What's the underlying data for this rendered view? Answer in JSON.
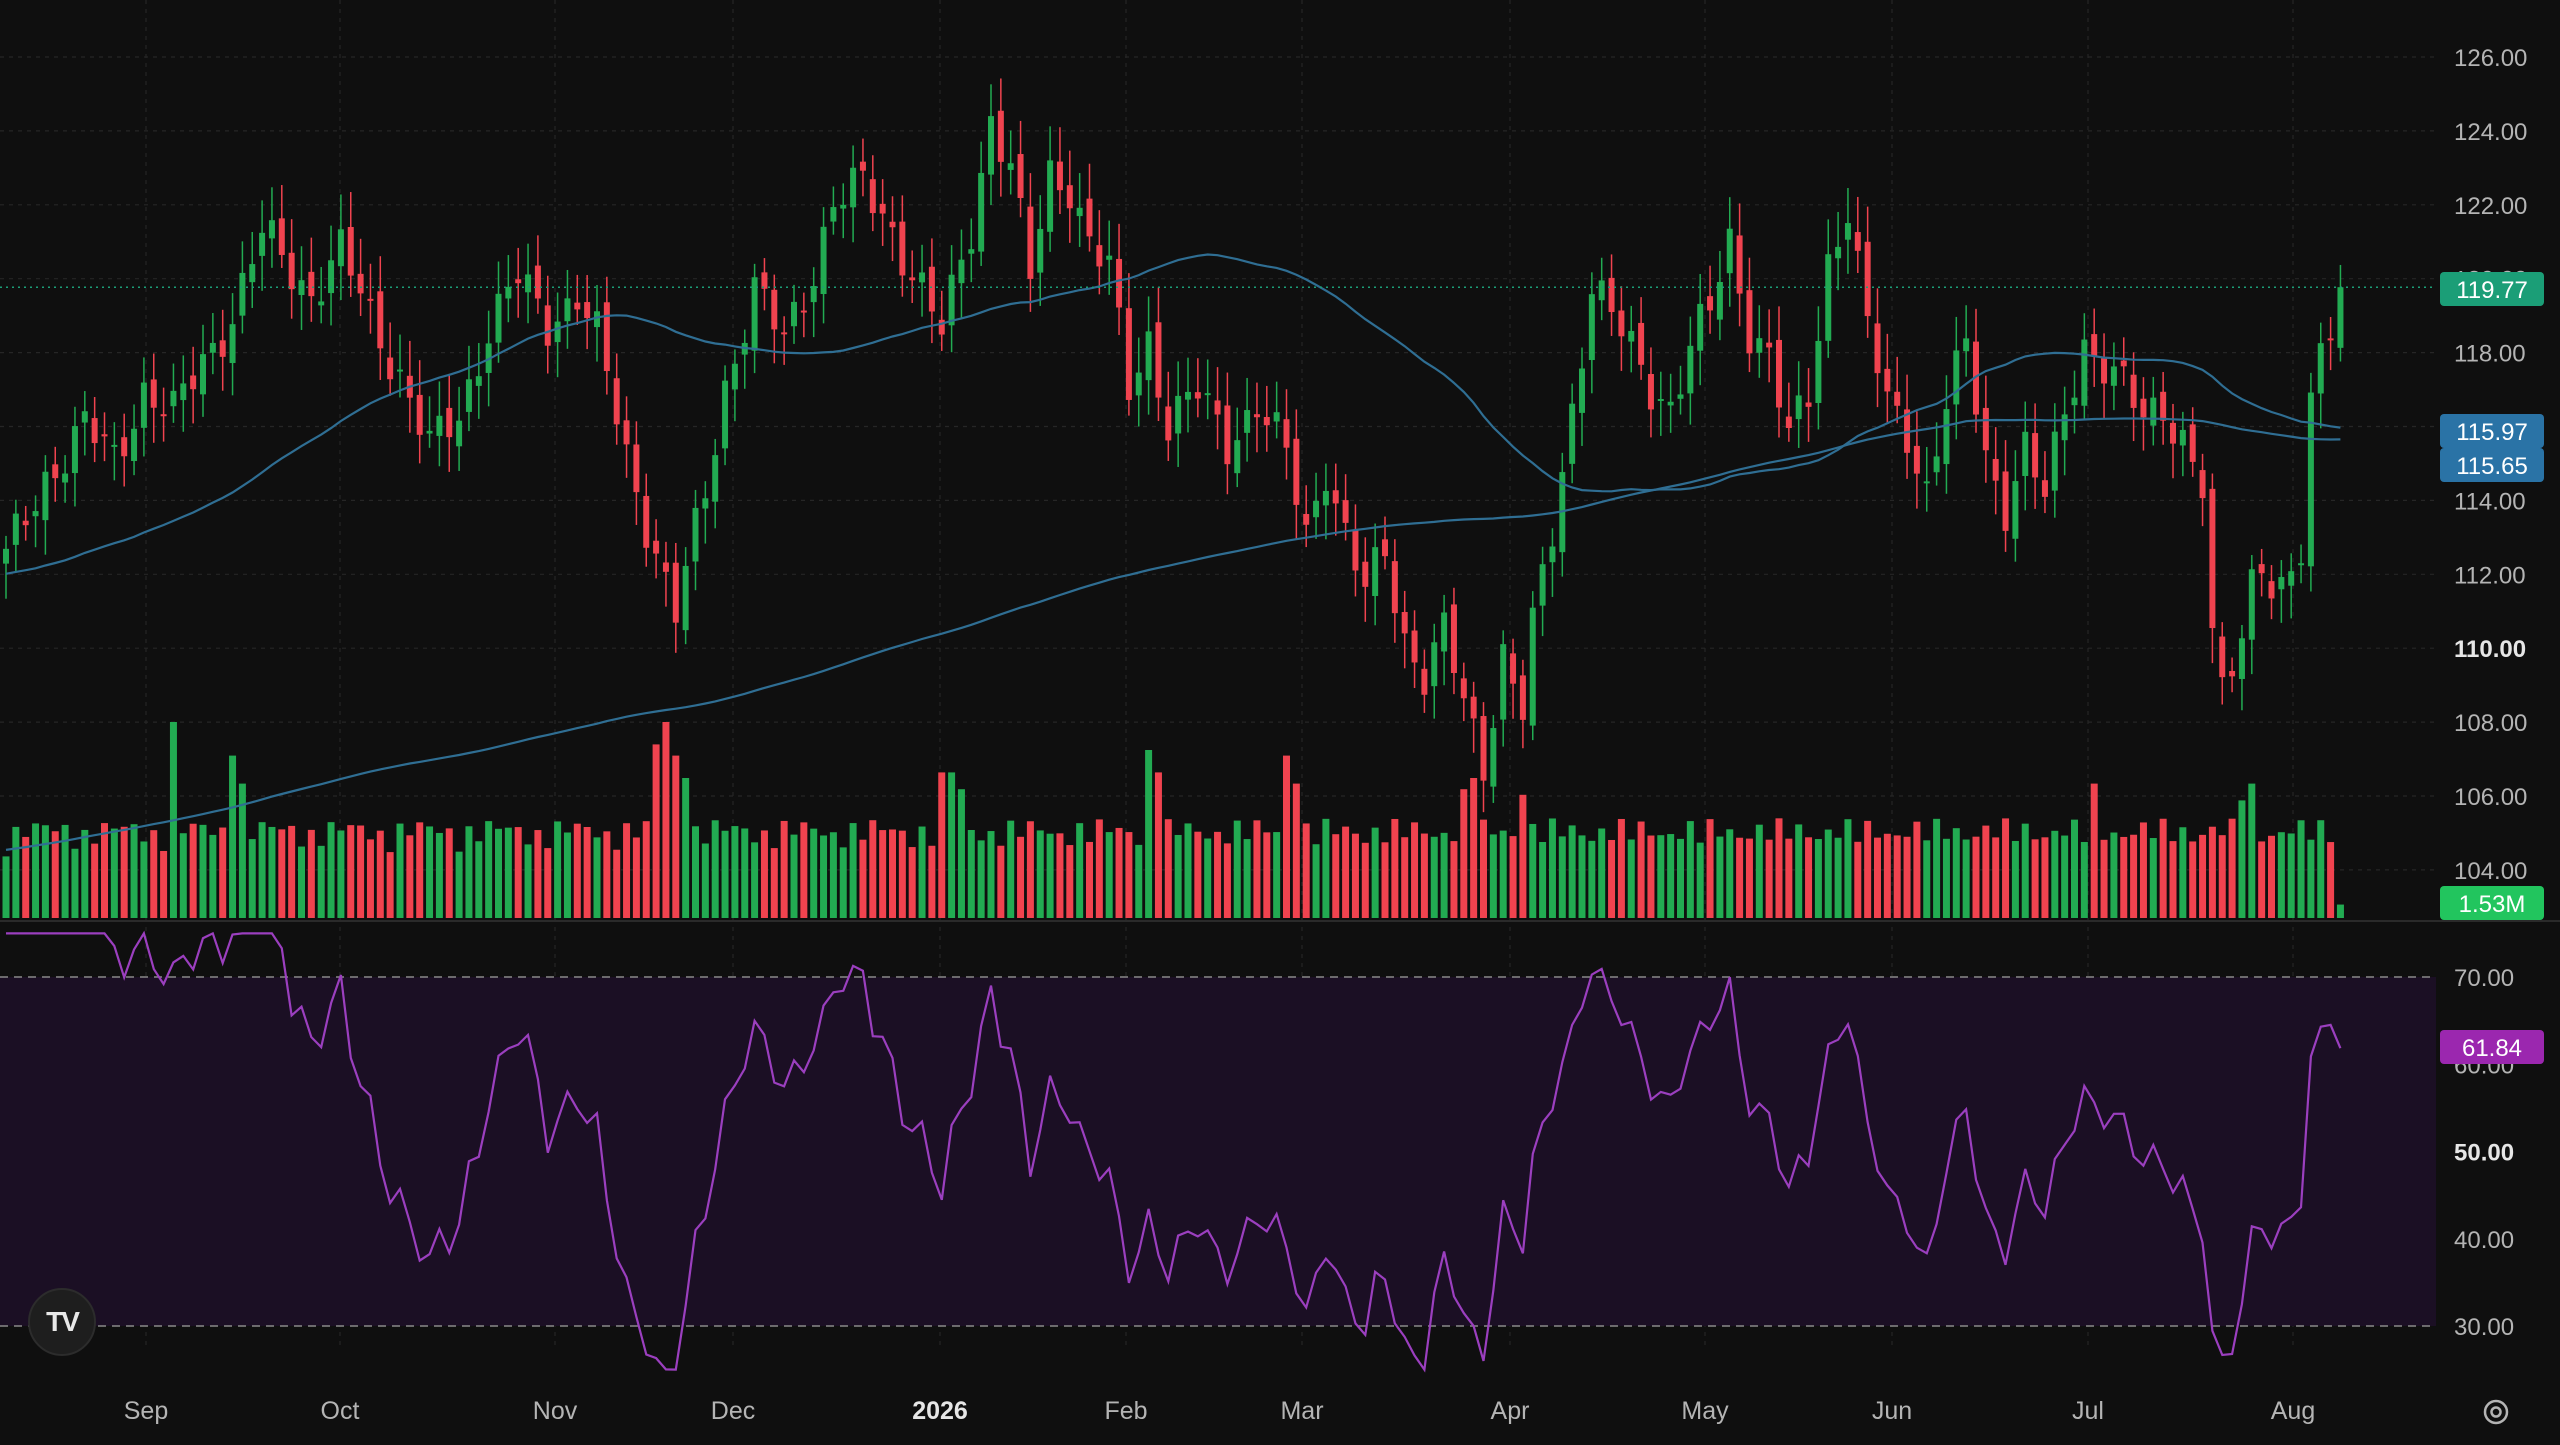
{
  "app": {
    "logo_text": "TV",
    "logo_icon": "tradingview-logo-icon",
    "settings_icon": "gear-icon"
  },
  "colors": {
    "background": "#0f0f0f",
    "grid": "#262626",
    "up": "#22ab52",
    "down": "#f0434f",
    "ma_line": "#2f6e93",
    "last_price_badge": "#1b9e77",
    "ma_badge": "#2a73a6",
    "volume_badge": "#22c55e",
    "rsi_line": "#9b3fbf",
    "rsi_band": "#1b0f24",
    "rsi_badge": "#9b27af",
    "axis_text": "#b4b4b4"
  },
  "chart_data": {
    "type": "candlestick",
    "price_axis": {
      "range": [
        102.5,
        127.0
      ],
      "ticks": [
        "126.00",
        "124.00",
        "122.00",
        "120.00",
        "118.00",
        "116.00",
        "114.00",
        "112.00",
        "110.00",
        "108.00",
        "106.00",
        "104.00"
      ],
      "bold_tick": "110.00"
    },
    "time_axis": {
      "labels": [
        {
          "text": "Sep",
          "bold": false
        },
        {
          "text": "Oct",
          "bold": false
        },
        {
          "text": "Nov",
          "bold": false
        },
        {
          "text": "Dec",
          "bold": false
        },
        {
          "text": "2026",
          "bold": true
        },
        {
          "text": "Feb",
          "bold": false
        },
        {
          "text": "Mar",
          "bold": false
        },
        {
          "text": "Apr",
          "bold": false
        },
        {
          "text": "May",
          "bold": false
        },
        {
          "text": "Jun",
          "bold": false
        },
        {
          "text": "Jul",
          "bold": false
        },
        {
          "text": "Aug",
          "bold": false
        }
      ]
    },
    "anchors": [
      [
        0,
        112.4
      ],
      [
        4,
        114.6
      ],
      [
        8,
        116.0
      ],
      [
        11,
        115.1
      ],
      [
        14,
        117.0
      ],
      [
        17,
        116.3
      ],
      [
        20,
        117.8
      ],
      [
        23,
        119.0
      ],
      [
        26,
        121.2
      ],
      [
        28,
        120.6
      ],
      [
        31,
        119.6
      ],
      [
        34,
        120.7
      ],
      [
        37,
        119.0
      ],
      [
        40,
        117.4
      ],
      [
        43,
        115.4
      ],
      [
        46,
        116.3
      ],
      [
        49,
        118.7
      ],
      [
        52,
        120.0
      ],
      [
        55,
        118.8
      ],
      [
        58,
        119.6
      ],
      [
        60,
        118.4
      ],
      [
        63,
        115.2
      ],
      [
        66,
        112.6
      ],
      [
        68,
        110.9
      ],
      [
        71,
        114.2
      ],
      [
        73,
        117.1
      ],
      [
        76,
        119.7
      ],
      [
        79,
        118.3
      ],
      [
        82,
        120.3
      ],
      [
        84,
        122.1
      ],
      [
        87,
        122.5
      ],
      [
        90,
        121.3
      ],
      [
        93,
        119.7
      ],
      [
        95,
        118.5
      ],
      [
        98,
        121.4
      ],
      [
        100,
        124.4
      ],
      [
        102,
        123.0
      ],
      [
        104,
        120.0
      ],
      [
        106,
        122.8
      ],
      [
        108,
        122.6
      ],
      [
        110,
        121.0
      ],
      [
        112,
        120.2
      ],
      [
        114,
        117.0
      ],
      [
        116,
        118.4
      ],
      [
        118,
        116.1
      ],
      [
        121,
        116.9
      ],
      [
        124,
        115.6
      ],
      [
        127,
        116.6
      ],
      [
        130,
        115.2
      ],
      [
        132,
        113.1
      ],
      [
        134,
        115.0
      ],
      [
        136,
        113.0
      ],
      [
        138,
        111.5
      ],
      [
        140,
        112.6
      ],
      [
        142,
        110.3
      ],
      [
        144,
        109.3
      ],
      [
        146,
        110.4
      ],
      [
        148,
        108.5
      ],
      [
        150,
        106.9
      ],
      [
        152,
        109.9
      ],
      [
        154,
        108.3
      ],
      [
        155,
        110.5
      ],
      [
        157,
        113.1
      ],
      [
        159,
        116.5
      ],
      [
        161,
        119.9
      ],
      [
        163,
        119.0
      ],
      [
        165,
        118.0
      ],
      [
        167,
        117.1
      ],
      [
        169,
        116.6
      ],
      [
        171,
        118.1
      ],
      [
        173,
        119.1
      ],
      [
        175,
        121.0
      ],
      [
        177,
        118.7
      ],
      [
        179,
        117.9
      ],
      [
        181,
        115.6
      ],
      [
        183,
        116.8
      ],
      [
        185,
        120.5
      ],
      [
        187,
        122.0
      ],
      [
        189,
        118.6
      ],
      [
        191,
        116.6
      ],
      [
        193,
        115.9
      ],
      [
        195,
        114.3
      ],
      [
        197,
        116.6
      ],
      [
        199,
        118.1
      ],
      [
        201,
        115.2
      ],
      [
        203,
        113.9
      ],
      [
        205,
        115.4
      ],
      [
        207,
        114.0
      ],
      [
        209,
        116.4
      ],
      [
        211,
        118.3
      ],
      [
        213,
        117.7
      ],
      [
        215,
        117.0
      ],
      [
        217,
        116.2
      ],
      [
        219,
        116.6
      ],
      [
        221,
        115.7
      ],
      [
        223,
        114.3
      ],
      [
        224,
        110.0
      ],
      [
        225,
        108.7
      ],
      [
        226,
        109.6
      ],
      [
        227,
        110.4
      ],
      [
        228,
        112.0
      ],
      [
        229,
        112.6
      ],
      [
        230,
        111.7
      ],
      [
        231,
        111.4
      ],
      [
        233,
        112.4
      ],
      [
        234,
        116.4
      ],
      [
        235,
        118.1
      ],
      [
        236,
        119.0
      ],
      [
        237,
        119.77
      ]
    ],
    "volume": {
      "last_label": "1.53M",
      "spikes": [
        [
          17,
          1.75
        ],
        [
          23,
          1.45
        ],
        [
          24,
          1.2
        ],
        [
          66,
          1.55
        ],
        [
          67,
          1.75
        ],
        [
          68,
          1.45
        ],
        [
          69,
          1.25
        ],
        [
          95,
          1.3
        ],
        [
          96,
          1.3
        ],
        [
          97,
          1.15
        ],
        [
          116,
          1.5
        ],
        [
          117,
          1.3
        ],
        [
          130,
          1.45
        ],
        [
          131,
          1.2
        ],
        [
          148,
          1.15
        ],
        [
          149,
          1.25
        ],
        [
          154,
          1.1
        ],
        [
          212,
          1.2
        ],
        [
          227,
          1.05
        ],
        [
          228,
          1.2
        ]
      ]
    },
    "moving_averages": [
      {
        "label": "115.97",
        "value": 115.97
      },
      {
        "label": "115.65",
        "value": 115.65
      }
    ],
    "last_price": {
      "label": "119.77",
      "value": 119.77
    },
    "rsi": {
      "upper": 70,
      "lower": 30,
      "ticks": [
        "70.00",
        "60.00",
        "50.00",
        "40.00",
        "30.00"
      ],
      "bold_tick": "50.00",
      "current": {
        "label": "61.84",
        "value": 61.84
      }
    }
  }
}
